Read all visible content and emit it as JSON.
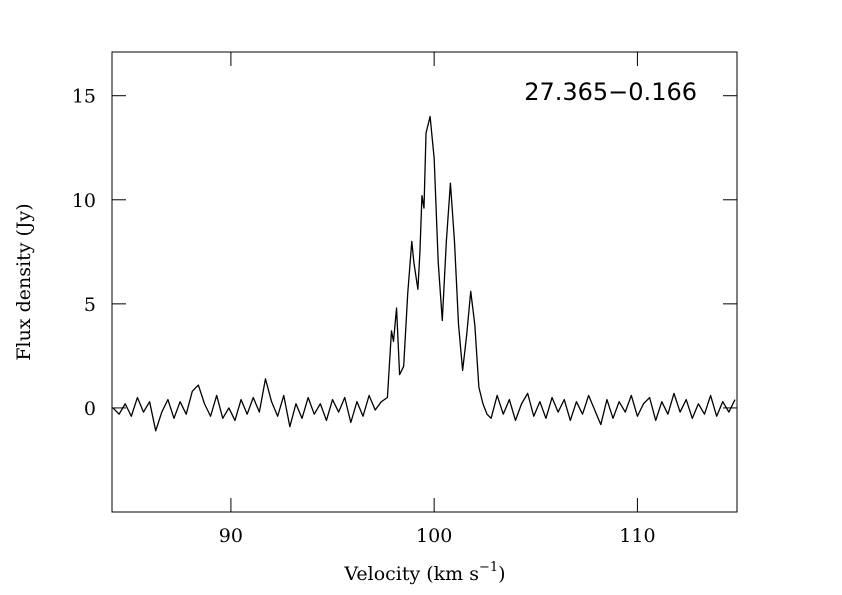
{
  "chart_data": {
    "type": "line",
    "xlabel": [
      "Velocity (km s",
      "−1",
      ")"
    ],
    "ylabel": "Flux density (Jy)",
    "annotation": "27.365−0.166",
    "color": "#000000",
    "xlim": [
      84.15,
      114.9
    ],
    "xticks": [
      90,
      100,
      110
    ],
    "ylim": [
      -5,
      17.1
    ],
    "yticks": [
      0,
      5,
      10,
      15
    ],
    "x": [
      84.2,
      84.5,
      84.8,
      85.1,
      85.4,
      85.7,
      86.0,
      86.3,
      86.6,
      86.9,
      87.2,
      87.5,
      87.8,
      88.1,
      88.4,
      88.7,
      89.0,
      89.3,
      89.6,
      89.9,
      90.2,
      90.5,
      90.8,
      91.1,
      91.4,
      91.7,
      92.0,
      92.3,
      92.6,
      92.9,
      93.2,
      93.5,
      93.8,
      94.1,
      94.4,
      94.7,
      95.0,
      95.3,
      95.6,
      95.9,
      96.2,
      96.5,
      96.8,
      97.1,
      97.4,
      97.7,
      97.9,
      98.0,
      98.15,
      98.3,
      98.5,
      98.7,
      98.9,
      99.0,
      99.2,
      99.3,
      99.4,
      99.5,
      99.6,
      99.8,
      100.0,
      100.2,
      100.4,
      100.6,
      100.8,
      101.0,
      101.2,
      101.4,
      101.6,
      101.8,
      102.0,
      102.2,
      102.4,
      102.6,
      102.8,
      103.1,
      103.4,
      103.7,
      104.0,
      104.3,
      104.6,
      104.9,
      105.2,
      105.5,
      105.8,
      106.1,
      106.4,
      106.7,
      107.0,
      107.3,
      107.6,
      107.9,
      108.2,
      108.5,
      108.8,
      109.1,
      109.4,
      109.7,
      110.0,
      110.3,
      110.6,
      110.9,
      111.2,
      111.5,
      111.8,
      112.1,
      112.4,
      112.7,
      113.0,
      113.3,
      113.6,
      113.9,
      114.2,
      114.5,
      114.8
    ],
    "values": [
      0.0,
      -0.3,
      0.2,
      -0.4,
      0.5,
      -0.2,
      0.3,
      -1.1,
      -0.2,
      0.4,
      -0.5,
      0.3,
      -0.3,
      0.8,
      1.1,
      0.2,
      -0.4,
      0.6,
      -0.5,
      0.0,
      -0.6,
      0.4,
      -0.3,
      0.5,
      -0.2,
      1.4,
      0.3,
      -0.4,
      0.6,
      -0.9,
      0.2,
      -0.5,
      0.5,
      -0.3,
      0.2,
      -0.6,
      0.4,
      -0.2,
      0.5,
      -0.7,
      0.3,
      -0.4,
      0.6,
      -0.1,
      0.3,
      0.5,
      3.7,
      3.2,
      4.8,
      1.6,
      2.0,
      5.5,
      8.0,
      7.0,
      5.7,
      7.5,
      10.2,
      9.6,
      13.2,
      14.0,
      12.0,
      7.0,
      4.2,
      8.0,
      10.8,
      8.0,
      4.0,
      1.8,
      3.5,
      5.6,
      4.0,
      1.0,
      0.2,
      -0.3,
      -0.5,
      0.6,
      -0.3,
      0.4,
      -0.6,
      0.2,
      0.7,
      -0.4,
      0.3,
      -0.5,
      0.5,
      -0.2,
      0.4,
      -0.6,
      0.3,
      -0.3,
      0.6,
      -0.1,
      -0.8,
      0.4,
      -0.5,
      0.3,
      -0.2,
      0.6,
      -0.4,
      0.2,
      0.5,
      -0.6,
      0.3,
      -0.3,
      0.7,
      -0.2,
      0.4,
      -0.5,
      0.2,
      -0.3,
      0.6,
      -0.4,
      0.3,
      -0.2,
      0.4
    ]
  }
}
